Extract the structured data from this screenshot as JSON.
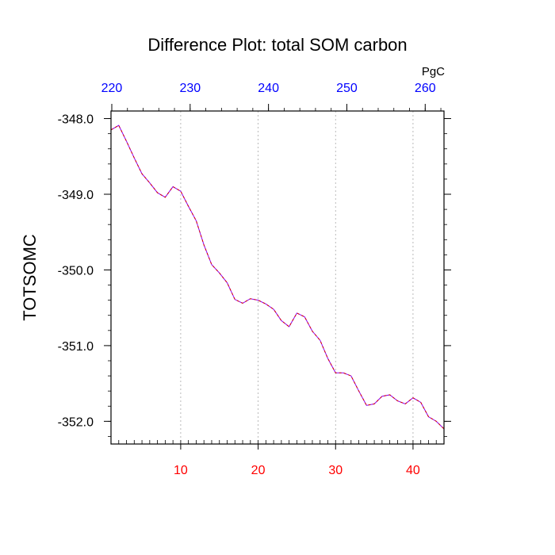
{
  "chart_data": {
    "type": "line",
    "title": "Difference Plot: total SOM carbon",
    "ylabel": "TOTSOMC",
    "top_axis_unit": "PgC",
    "x": [
      1,
      2,
      3,
      4,
      5,
      6,
      7,
      8,
      9,
      10,
      11,
      12,
      13,
      14,
      15,
      16,
      17,
      18,
      19,
      20,
      21,
      22,
      23,
      24,
      25,
      26,
      27,
      28,
      29,
      30,
      31,
      32,
      33,
      34,
      35,
      36,
      37,
      38,
      39,
      40,
      41,
      42,
      43,
      44
    ],
    "series": [
      {
        "values": [
          -348.15,
          -348.09,
          -348.3,
          -348.52,
          -348.73,
          -348.85,
          -348.98,
          -349.04,
          -348.9,
          -348.96,
          -349.16,
          -349.35,
          -349.67,
          -349.93,
          -350.04,
          -350.17,
          -350.39,
          -350.44,
          -350.38,
          -350.4,
          -350.45,
          -350.52,
          -350.67,
          -350.75,
          -350.57,
          -350.62,
          -350.81,
          -350.93,
          -351.17,
          -351.36,
          -351.36,
          -351.4,
          -351.6,
          -351.79,
          -351.77,
          -351.67,
          -351.65,
          -351.73,
          -351.77,
          -351.69,
          -351.75,
          -351.94,
          -352.0,
          -352.1
        ],
        "color": "#8b00ff",
        "dash_color": "#d60000"
      }
    ],
    "xlim": [
      1,
      44
    ],
    "ylim": [
      -352.3,
      -347.9
    ],
    "bottom_ticks": [
      10,
      20,
      30,
      40
    ],
    "bottom_tick_labels": [
      "10",
      "20",
      "30",
      "40"
    ],
    "bottom_tick_color": "#ff0000",
    "top_ticks": [
      220,
      230,
      240,
      250,
      260
    ],
    "top_tick_labels": [
      "220",
      "230",
      "240",
      "250",
      "260"
    ],
    "top_tick_color": "#0000ff",
    "top_axis_range": [
      219.9,
      262.4
    ],
    "y_ticks": [
      -348.0,
      -349.0,
      -350.0,
      -351.0,
      -352.0
    ],
    "y_tick_labels": [
      "-348.0",
      "-349.0",
      "-350.0",
      "-351.0",
      "-352.0"
    ],
    "grid": "vertical dotted at bottom ticks"
  }
}
